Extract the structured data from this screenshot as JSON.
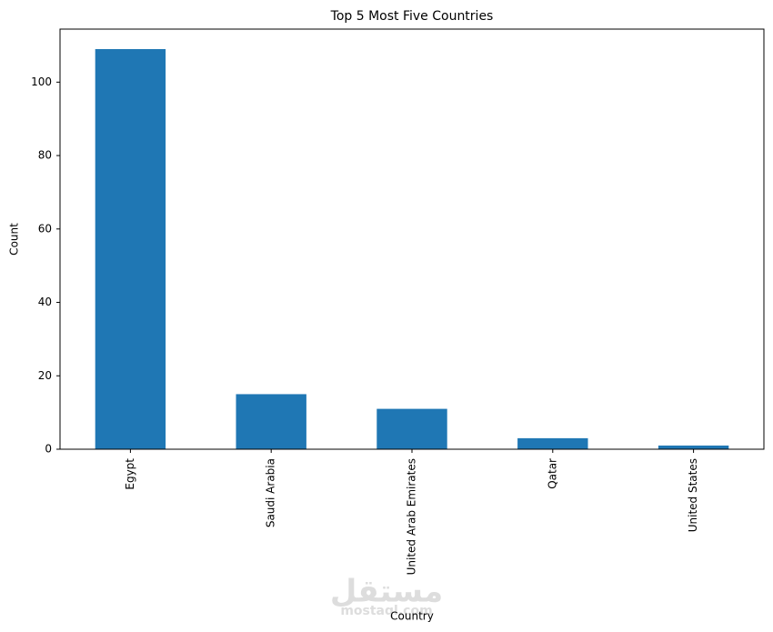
{
  "chart_data": {
    "type": "bar",
    "title": "Top 5 Most Five Countries",
    "x_label": "Country",
    "y_label": "Count",
    "categories": [
      "Egypt",
      "Saudi Arabia",
      "United Arab Emirates",
      "Qatar",
      "United States"
    ],
    "values": [
      109,
      15,
      11,
      3,
      1
    ],
    "color": "#1f77b4",
    "ylim": [
      0,
      114.45
    ],
    "yticks": [
      0,
      20,
      40,
      60,
      80,
      100
    ],
    "grid": false,
    "watermark": "مستقل",
    "watermark_sub": "mostaql.com"
  }
}
